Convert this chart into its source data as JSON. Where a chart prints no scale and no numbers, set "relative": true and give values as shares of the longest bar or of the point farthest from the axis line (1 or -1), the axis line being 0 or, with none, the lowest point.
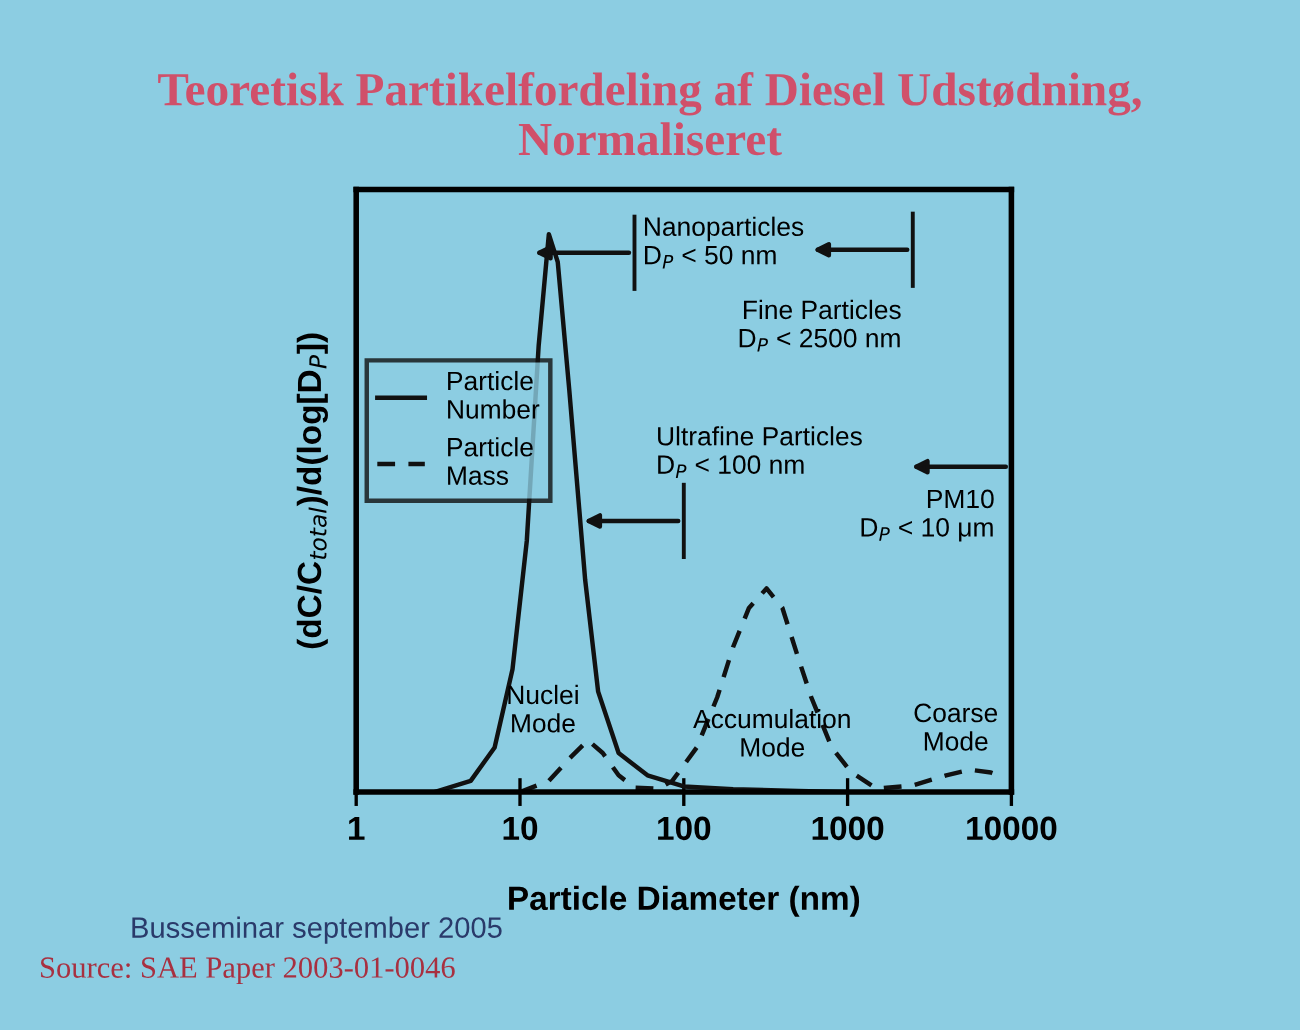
{
  "chart_data": {
    "type": "line",
    "title": "Teoretisk Partikelfordeling af Diesel Udstødning,\nNormaliseret",
    "xlabel": "Particle Diameter (nm)",
    "ylabel": "(dC/C$_{total}$)/d(log[D$_{P}$])",
    "log": "x",
    "xlim": [
      1,
      10000
    ],
    "xticks": [
      1,
      10,
      100,
      1000,
      10000
    ],
    "relative": true,
    "tick_labels": "x",
    "legend": "left",
    "series": [
      {
        "name": "Particle\nNumber",
        "color": "#111111",
        "line_style": "solid",
        "x": [
          3,
          5,
          7,
          9,
          11,
          13,
          15,
          17,
          20,
          25,
          30,
          40,
          60,
          100,
          200,
          500,
          1000
        ],
        "values": [
          0.0,
          0.02,
          0.08,
          0.22,
          0.45,
          0.8,
          1.0,
          0.95,
          0.72,
          0.38,
          0.18,
          0.07,
          0.03,
          0.01,
          0.005,
          0.002,
          0.0
        ]
      },
      {
        "name": "Particle\nMass",
        "color": "#111111",
        "line_style": "dashed",
        "x": [
          10,
          15,
          20,
          26,
          32,
          40,
          50,
          70,
          85,
          120,
          160,
          200,
          250,
          320,
          400,
          500,
          600,
          800,
          1050,
          1500,
          2500,
          4000,
          5600,
          7500,
          9000
        ],
        "values": [
          0.0,
          0.02,
          0.06,
          0.093,
          0.07,
          0.03,
          0.008,
          0.006,
          0.02,
          0.08,
          0.17,
          0.26,
          0.33,
          0.365,
          0.33,
          0.24,
          0.17,
          0.08,
          0.036,
          0.006,
          0.012,
          0.03,
          0.04,
          0.035,
          0.026
        ]
      }
    ],
    "ref_lines": [
      {
        "axis": "x",
        "value": 50,
        "label": "Nanoparticles\nD$_{P}$ < 50 nm"
      },
      {
        "axis": "x",
        "value": 100,
        "label": "Ultrafine Particles\nD$_{P}$ < 100 nm"
      },
      {
        "axis": "x",
        "value": 2500,
        "label": "Fine Particles\nD$_{P}$ < 2500 nm"
      },
      {
        "axis": "x",
        "value": 10000,
        "label": "PM10\nD$_{P}$ < 10 μm"
      }
    ],
    "annotations": [
      "Nuclei\nMode",
      "Accumulation\nMode",
      "Coarse\nMode",
      "Busseminar september 2005",
      "Source: SAE Paper 2003-01-0046"
    ]
  }
}
